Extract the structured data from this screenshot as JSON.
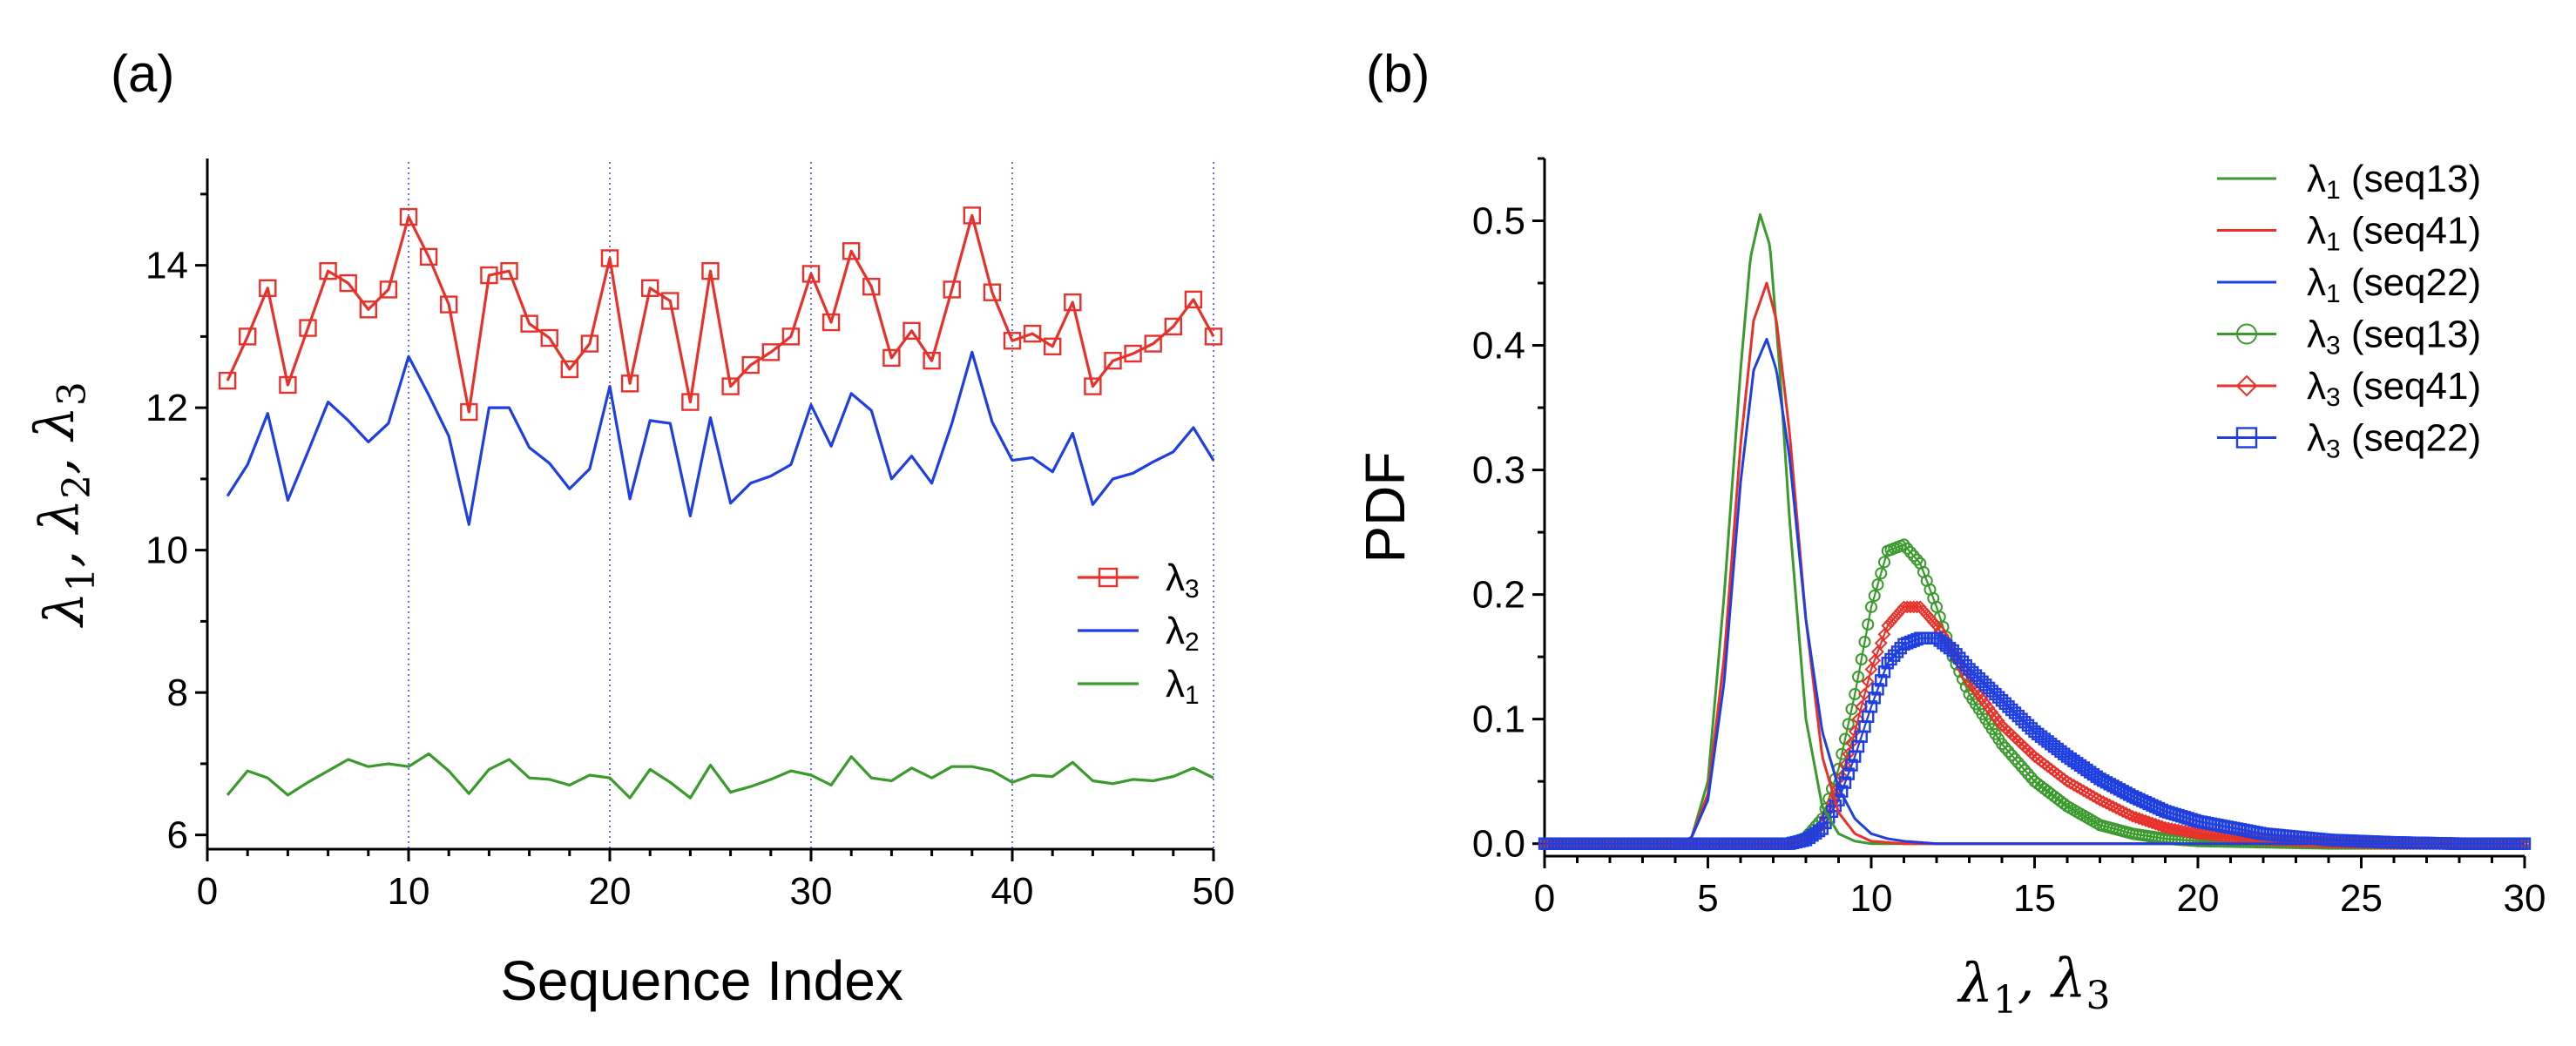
{
  "chart_data": [
    {
      "panel_label": "(a)",
      "type": "line",
      "xlabel": "Sequence Index",
      "ylabel": "λ1, λ2, λ3",
      "ylabel_parts": [
        {
          "t": "λ",
          "sub": "1",
          "sep": ", "
        },
        {
          "t": "λ",
          "sub": "2",
          "sep": ", "
        },
        {
          "t": "λ",
          "sub": "3",
          "sep": ""
        }
      ],
      "xlim": [
        0,
        50
      ],
      "ylim": [
        5.8,
        15.5
      ],
      "xticks": [
        0,
        10,
        20,
        30,
        40,
        50
      ],
      "yticks": [
        6,
        8,
        10,
        12,
        14
      ],
      "vgrid": [
        0,
        10,
        20,
        30,
        40,
        50
      ],
      "legend_position": "center-right",
      "x": [
        1,
        2,
        3,
        4,
        5,
        6,
        7,
        8,
        9,
        10,
        11,
        12,
        13,
        14,
        15,
        16,
        17,
        18,
        19,
        20,
        21,
        22,
        23,
        24,
        25,
        26,
        27,
        28,
        29,
        30,
        31,
        32,
        33,
        34,
        35,
        36,
        37,
        38,
        39,
        40,
        41,
        42,
        43,
        44,
        45,
        46,
        47,
        48,
        49,
        50
      ],
      "series": [
        {
          "name": "λ3",
          "base": "λ",
          "sub": "3",
          "color": "#e8312a",
          "marker": "square",
          "values": [
            12.38,
            13.0,
            13.68,
            12.32,
            13.12,
            13.92,
            13.75,
            13.38,
            13.66,
            14.68,
            14.12,
            13.45,
            11.94,
            13.86,
            13.92,
            13.18,
            12.98,
            12.54,
            12.9,
            14.1,
            12.34,
            13.68,
            13.5,
            12.08,
            13.92,
            12.3,
            12.6,
            12.78,
            13.0,
            13.88,
            13.2,
            14.2,
            13.7,
            12.7,
            13.08,
            12.66,
            13.66,
            14.7,
            13.62,
            12.94,
            13.04,
            12.86,
            13.48,
            12.3,
            12.66,
            12.76,
            12.9,
            13.14,
            13.52,
            13.0
          ]
        },
        {
          "name": "λ2",
          "base": "λ",
          "sub": "2",
          "color": "#1f3fe0",
          "marker": "none",
          "values": [
            10.76,
            11.2,
            11.92,
            10.7,
            11.38,
            12.08,
            11.82,
            11.52,
            11.78,
            12.72,
            12.18,
            11.6,
            10.36,
            12.0,
            12.0,
            11.44,
            11.22,
            10.86,
            11.14,
            12.3,
            10.72,
            11.82,
            11.78,
            10.48,
            11.86,
            10.66,
            10.94,
            11.04,
            11.2,
            12.04,
            11.46,
            12.2,
            11.96,
            11.0,
            11.32,
            10.94,
            11.78,
            12.78,
            11.8,
            11.26,
            11.3,
            11.1,
            11.64,
            10.64,
            11.0,
            11.08,
            11.24,
            11.38,
            11.72,
            11.26
          ]
        },
        {
          "name": "λ1",
          "base": "λ",
          "sub": "1",
          "color": "#3a9a2c",
          "marker": "none",
          "values": [
            6.56,
            6.9,
            6.8,
            6.56,
            6.74,
            6.9,
            7.06,
            6.96,
            7.0,
            6.96,
            7.14,
            6.9,
            6.58,
            6.92,
            7.06,
            6.8,
            6.78,
            6.7,
            6.84,
            6.8,
            6.52,
            6.92,
            6.74,
            6.52,
            6.98,
            6.6,
            6.68,
            6.78,
            6.9,
            6.84,
            6.7,
            7.1,
            6.8,
            6.76,
            6.94,
            6.8,
            6.96,
            6.96,
            6.9,
            6.74,
            6.84,
            6.82,
            7.02,
            6.76,
            6.72,
            6.78,
            6.76,
            6.82,
            6.94,
            6.8
          ]
        }
      ]
    },
    {
      "panel_label": "(b)",
      "type": "line",
      "xlabel": "λ1, λ3",
      "xlabel_parts": [
        {
          "t": "λ",
          "sub": "1",
          "sep": ", "
        },
        {
          "t": "λ",
          "sub": "3",
          "sep": ""
        }
      ],
      "ylabel": "PDF",
      "xlim": [
        0,
        30
      ],
      "ylim": [
        -0.01,
        0.55
      ],
      "xticks": [
        0,
        5,
        10,
        15,
        20,
        25,
        30
      ],
      "yticks": [
        0.0,
        0.1,
        0.2,
        0.3,
        0.4,
        0.5
      ],
      "yticklabels": [
        "0.0",
        "0.1",
        "0.2",
        "0.3",
        "0.4",
        "0.5"
      ],
      "legend_position": "top-right",
      "series": [
        {
          "name": "λ1 (seq13)",
          "base": "λ",
          "sub": "1",
          "suffix": " (seq13)",
          "color": "#3a9a2c",
          "marker": "none",
          "x": [
            0,
            4,
            4.5,
            5,
            5.5,
            6,
            6.3,
            6.6,
            6.9,
            7.2,
            7.5,
            8,
            8.5,
            9,
            9.5,
            10,
            11,
            30
          ],
          "values": [
            0,
            0,
            0.005,
            0.05,
            0.2,
            0.38,
            0.47,
            0.505,
            0.48,
            0.38,
            0.26,
            0.1,
            0.03,
            0.008,
            0.002,
            0,
            0,
            0
          ]
        },
        {
          "name": "λ1 (seq41)",
          "base": "λ",
          "sub": "1",
          "suffix": " (seq41)",
          "color": "#e8312a",
          "marker": "none",
          "x": [
            0,
            4,
            4.5,
            5,
            5.5,
            6,
            6.4,
            6.8,
            7.1,
            7.5,
            8,
            8.5,
            9,
            9.5,
            10,
            11,
            30
          ],
          "values": [
            0,
            0,
            0.005,
            0.04,
            0.15,
            0.32,
            0.42,
            0.45,
            0.42,
            0.33,
            0.18,
            0.07,
            0.025,
            0.008,
            0.002,
            0,
            0
          ]
        },
        {
          "name": "λ1 (seq22)",
          "base": "λ",
          "sub": "1",
          "suffix": " (seq22)",
          "color": "#1f3fe0",
          "marker": "none",
          "x": [
            0,
            4,
            4.5,
            5,
            5.5,
            6,
            6.4,
            6.8,
            7.1,
            7.5,
            8,
            8.5,
            9,
            9.5,
            10,
            10.5,
            11,
            12,
            30
          ],
          "values": [
            0,
            0,
            0.005,
            0.035,
            0.13,
            0.29,
            0.38,
            0.405,
            0.38,
            0.31,
            0.18,
            0.09,
            0.045,
            0.02,
            0.008,
            0.004,
            0.002,
            0,
            0
          ]
        },
        {
          "name": "λ3 (seq13)",
          "base": "λ",
          "sub": "3",
          "suffix": " (seq13)",
          "color": "#3a9a2c",
          "marker": "circle",
          "x": [
            0,
            7.5,
            8,
            8.5,
            9,
            9.5,
            10,
            10.5,
            11,
            11.5,
            12,
            12.5,
            13,
            14,
            15,
            16,
            17,
            18,
            19,
            20,
            22,
            24,
            26,
            30
          ],
          "values": [
            0,
            0,
            0.005,
            0.02,
            0.06,
            0.12,
            0.19,
            0.235,
            0.24,
            0.225,
            0.19,
            0.15,
            0.12,
            0.08,
            0.05,
            0.03,
            0.015,
            0.008,
            0.004,
            0.002,
            0.001,
            0,
            0,
            0
          ]
        },
        {
          "name": "λ3 (seq41)",
          "base": "λ",
          "sub": "3",
          "suffix": " (seq41)",
          "color": "#e8312a",
          "marker": "diamond",
          "x": [
            0,
            7.5,
            8,
            8.5,
            9,
            9.5,
            10,
            10.5,
            11,
            11.5,
            12,
            12.5,
            13,
            14,
            15,
            16,
            17,
            18,
            19,
            20,
            22,
            24,
            26,
            30
          ],
          "values": [
            0,
            0,
            0.004,
            0.015,
            0.045,
            0.09,
            0.14,
            0.175,
            0.19,
            0.19,
            0.175,
            0.155,
            0.13,
            0.095,
            0.07,
            0.05,
            0.035,
            0.022,
            0.013,
            0.008,
            0.003,
            0.001,
            0,
            0
          ]
        },
        {
          "name": "λ3 (seq22)",
          "base": "λ",
          "sub": "3",
          "suffix": " (seq22)",
          "color": "#1f3fe0",
          "marker": "square",
          "x": [
            0,
            7.5,
            8,
            8.5,
            9,
            9.5,
            10,
            10.5,
            11,
            11.5,
            12,
            12.5,
            13,
            14,
            15,
            16,
            17,
            18,
            19,
            20,
            22,
            24,
            26,
            28,
            30
          ],
          "values": [
            0,
            0,
            0.003,
            0.012,
            0.035,
            0.07,
            0.11,
            0.145,
            0.16,
            0.165,
            0.165,
            0.155,
            0.14,
            0.115,
            0.09,
            0.07,
            0.052,
            0.038,
            0.026,
            0.018,
            0.008,
            0.003,
            0.001,
            0,
            0
          ]
        }
      ]
    }
  ]
}
